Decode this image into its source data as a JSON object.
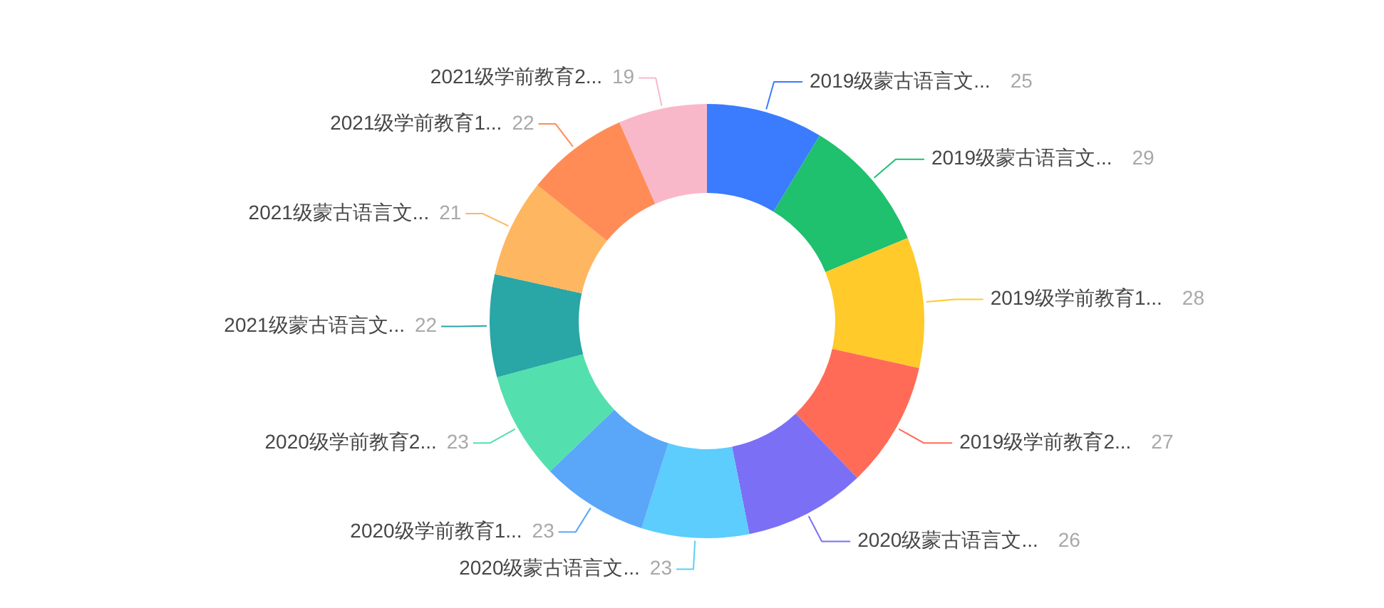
{
  "chart_data": {
    "type": "donut",
    "categories": [
      "2019级蒙古语言文...",
      "2019级蒙古语言文...",
      "2019级学前教育1...",
      "2019级学前教育2...",
      "2020级蒙古语言文...",
      "2020级蒙古语言文...",
      "2020级学前教育1...",
      "2020级学前教育2...",
      "2021级蒙古语言文...",
      "2021级蒙古语言文...",
      "2021级学前教育1...",
      "2021级学前教育2..."
    ],
    "values": [
      25,
      29,
      28,
      27,
      26,
      23,
      23,
      23,
      22,
      21,
      22,
      19
    ],
    "colors": [
      "#3a7cfd",
      "#1fc06e",
      "#ffca2a",
      "#ff6b57",
      "#7b6ff6",
      "#5ccdfc",
      "#5aa7f9",
      "#53dfae",
      "#29a6a6",
      "#ffb660",
      "#ff8c56",
      "#f9b8c9"
    ],
    "data_labels": true
  }
}
